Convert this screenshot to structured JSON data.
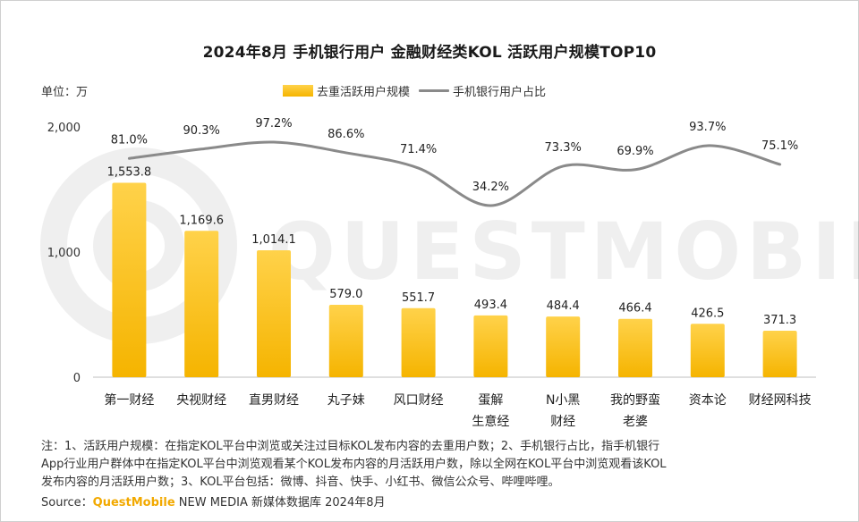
{
  "title": "2024年8月 手机银行用户 金融财经类KOL 活跃用户规模TOP10",
  "unit_label": "单位：万",
  "legend": {
    "bar_label": "去重活跃用户规模",
    "line_label": "手机银行用户占比"
  },
  "watermark": "QUESTMOBILE",
  "notes": {
    "line1": "注：1、活跃用户规模：在指定KOL平台中浏览或关注过目标KOL发布内容的去重用户数；2、手机银行占比，指手机银行",
    "line2": "App行业用户群体中在指定KOL平台中浏览观看某个KOL发布内容的月活跃用户数，除以全网在KOL平台中浏览观看该KOL",
    "line3": "发布内容的月活跃用户数；3、KOL平台包括：微博、抖音、快手、小红书、微信公众号、哔哩哔哩。"
  },
  "source": {
    "prefix": "Source：",
    "brand": "QuestMobile",
    "rest": " NEW MEDIA 新媒体数据库 2024年8月"
  },
  "colors": {
    "bar_top": "#ffd24a",
    "bar_bottom": "#f5b400",
    "line": "#8a8a8a",
    "brand": "#f2a900"
  },
  "chart_data": {
    "type": "bar",
    "categories": [
      "第一财经",
      "央视财经",
      "直男财经",
      "丸子妹",
      "风口财经",
      "蛋解\n生意经",
      "N小黑\n财经",
      "我的野蛮\n老婆",
      "资本论",
      "财经网科技"
    ],
    "series": [
      {
        "name": "去重活跃用户规模",
        "type": "bar",
        "values": [
          1553.8,
          1169.6,
          1014.1,
          579.0,
          551.7,
          493.4,
          484.4,
          466.4,
          426.5,
          371.3
        ],
        "labels": [
          "1,553.8",
          "1,169.6",
          "1,014.1",
          "579.0",
          "551.7",
          "493.4",
          "484.4",
          "466.4",
          "426.5",
          "371.3"
        ]
      },
      {
        "name": "手机银行用户占比",
        "type": "line",
        "values": [
          81.0,
          90.3,
          97.2,
          86.6,
          71.4,
          34.2,
          73.3,
          69.9,
          93.7,
          75.1
        ],
        "labels": [
          "81.0%",
          "90.3%",
          "97.2%",
          "86.6%",
          "71.4%",
          "34.2%",
          "73.3%",
          "69.9%",
          "93.7%",
          "75.1%"
        ]
      }
    ],
    "y_ticks": [
      "0",
      "1,000",
      "2,000"
    ],
    "ylim": [
      0,
      2000
    ],
    "ylabel": "单位：万",
    "xlabel": "",
    "grid": false,
    "legend_position": "top-center"
  }
}
